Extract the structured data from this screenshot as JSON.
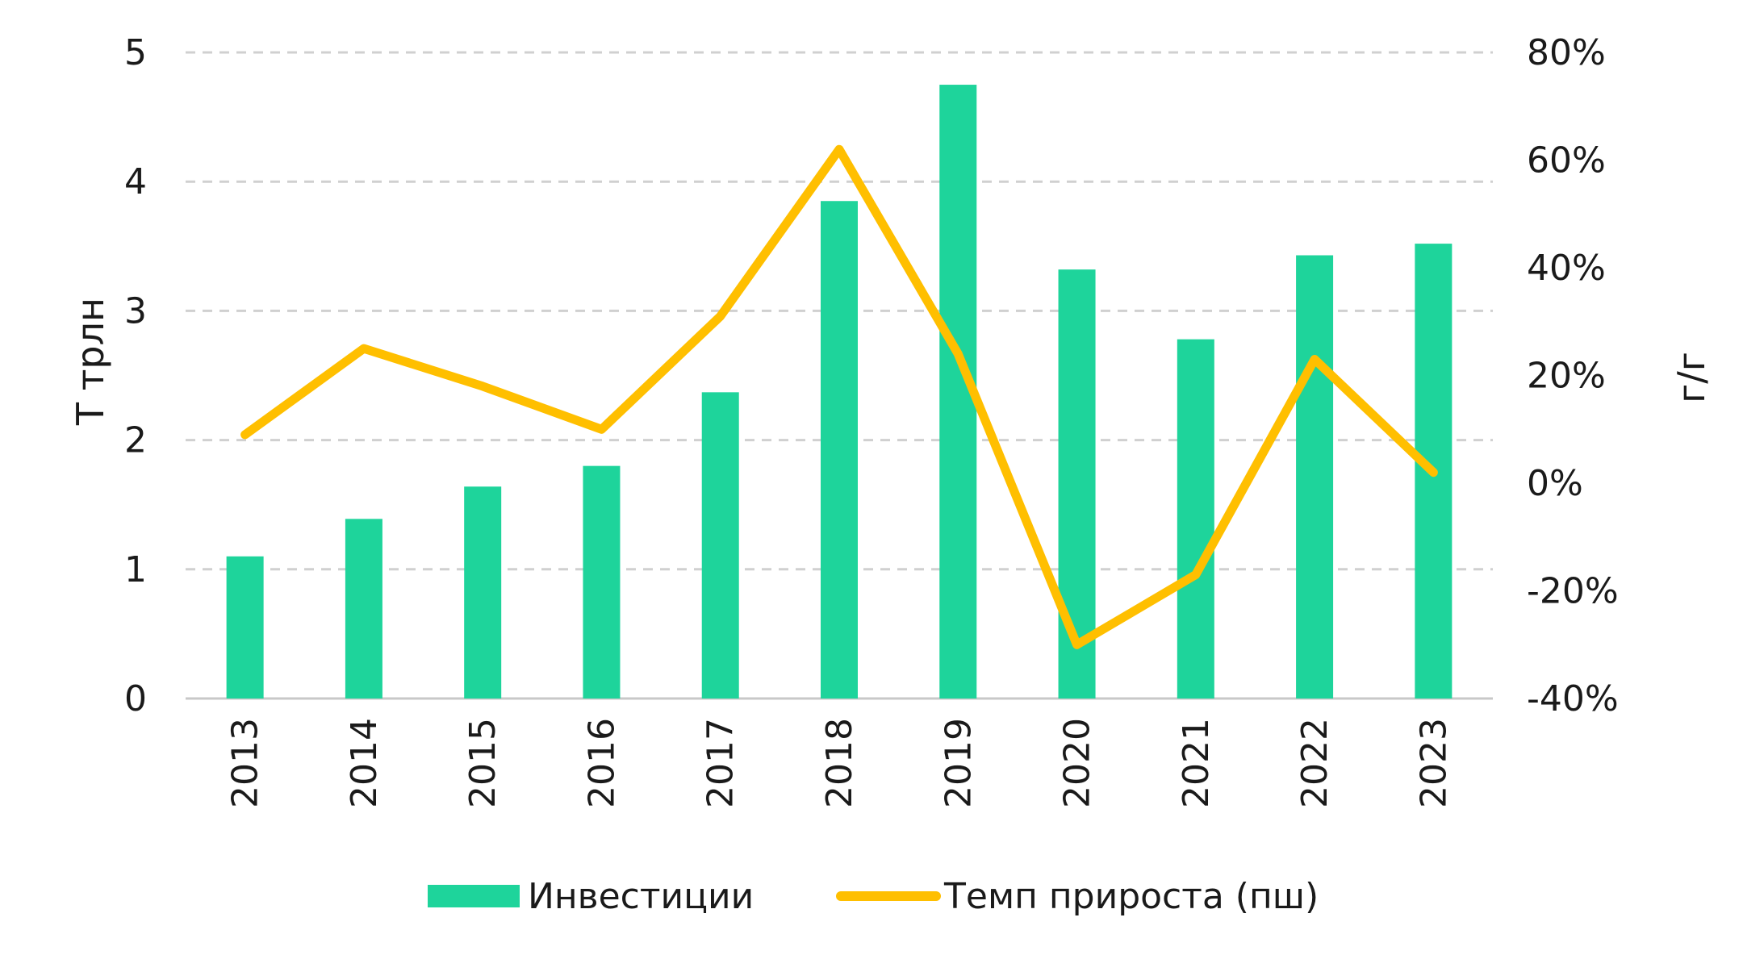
{
  "chart_data": {
    "type": "bar",
    "categories": [
      "2013",
      "2014",
      "2015",
      "2016",
      "2017",
      "2018",
      "2019",
      "2020",
      "2021",
      "2022",
      "2023"
    ],
    "series": [
      {
        "name": "Инвестиции",
        "type": "bar",
        "axis": "left",
        "values": [
          1.1,
          1.39,
          1.64,
          1.8,
          2.37,
          3.85,
          4.75,
          3.32,
          2.78,
          3.43,
          3.52
        ]
      },
      {
        "name": "Темп прироста (пш)",
        "type": "line",
        "axis": "right",
        "values": [
          0.09,
          0.25,
          0.18,
          0.1,
          0.31,
          0.62,
          0.24,
          -0.3,
          -0.17,
          0.23,
          0.02
        ]
      }
    ],
    "ylabel": "Т трлн",
    "ylim": [
      0,
      5
    ],
    "yticks": [
      "0",
      "1",
      "2",
      "3",
      "4",
      "5"
    ],
    "y2label": "г/г",
    "y2lim": [
      -0.4,
      0.8
    ],
    "y2ticks": [
      "-40%",
      "-20%",
      "0%",
      "20%",
      "40%",
      "60%",
      "80%"
    ],
    "grid": "horizontal dashed",
    "legend": "bottom",
    "colors": {
      "bar": "#1ed49b",
      "line": "#ffbf00",
      "grid": "#d0d0d0",
      "axis": "#c8c8c8"
    }
  }
}
